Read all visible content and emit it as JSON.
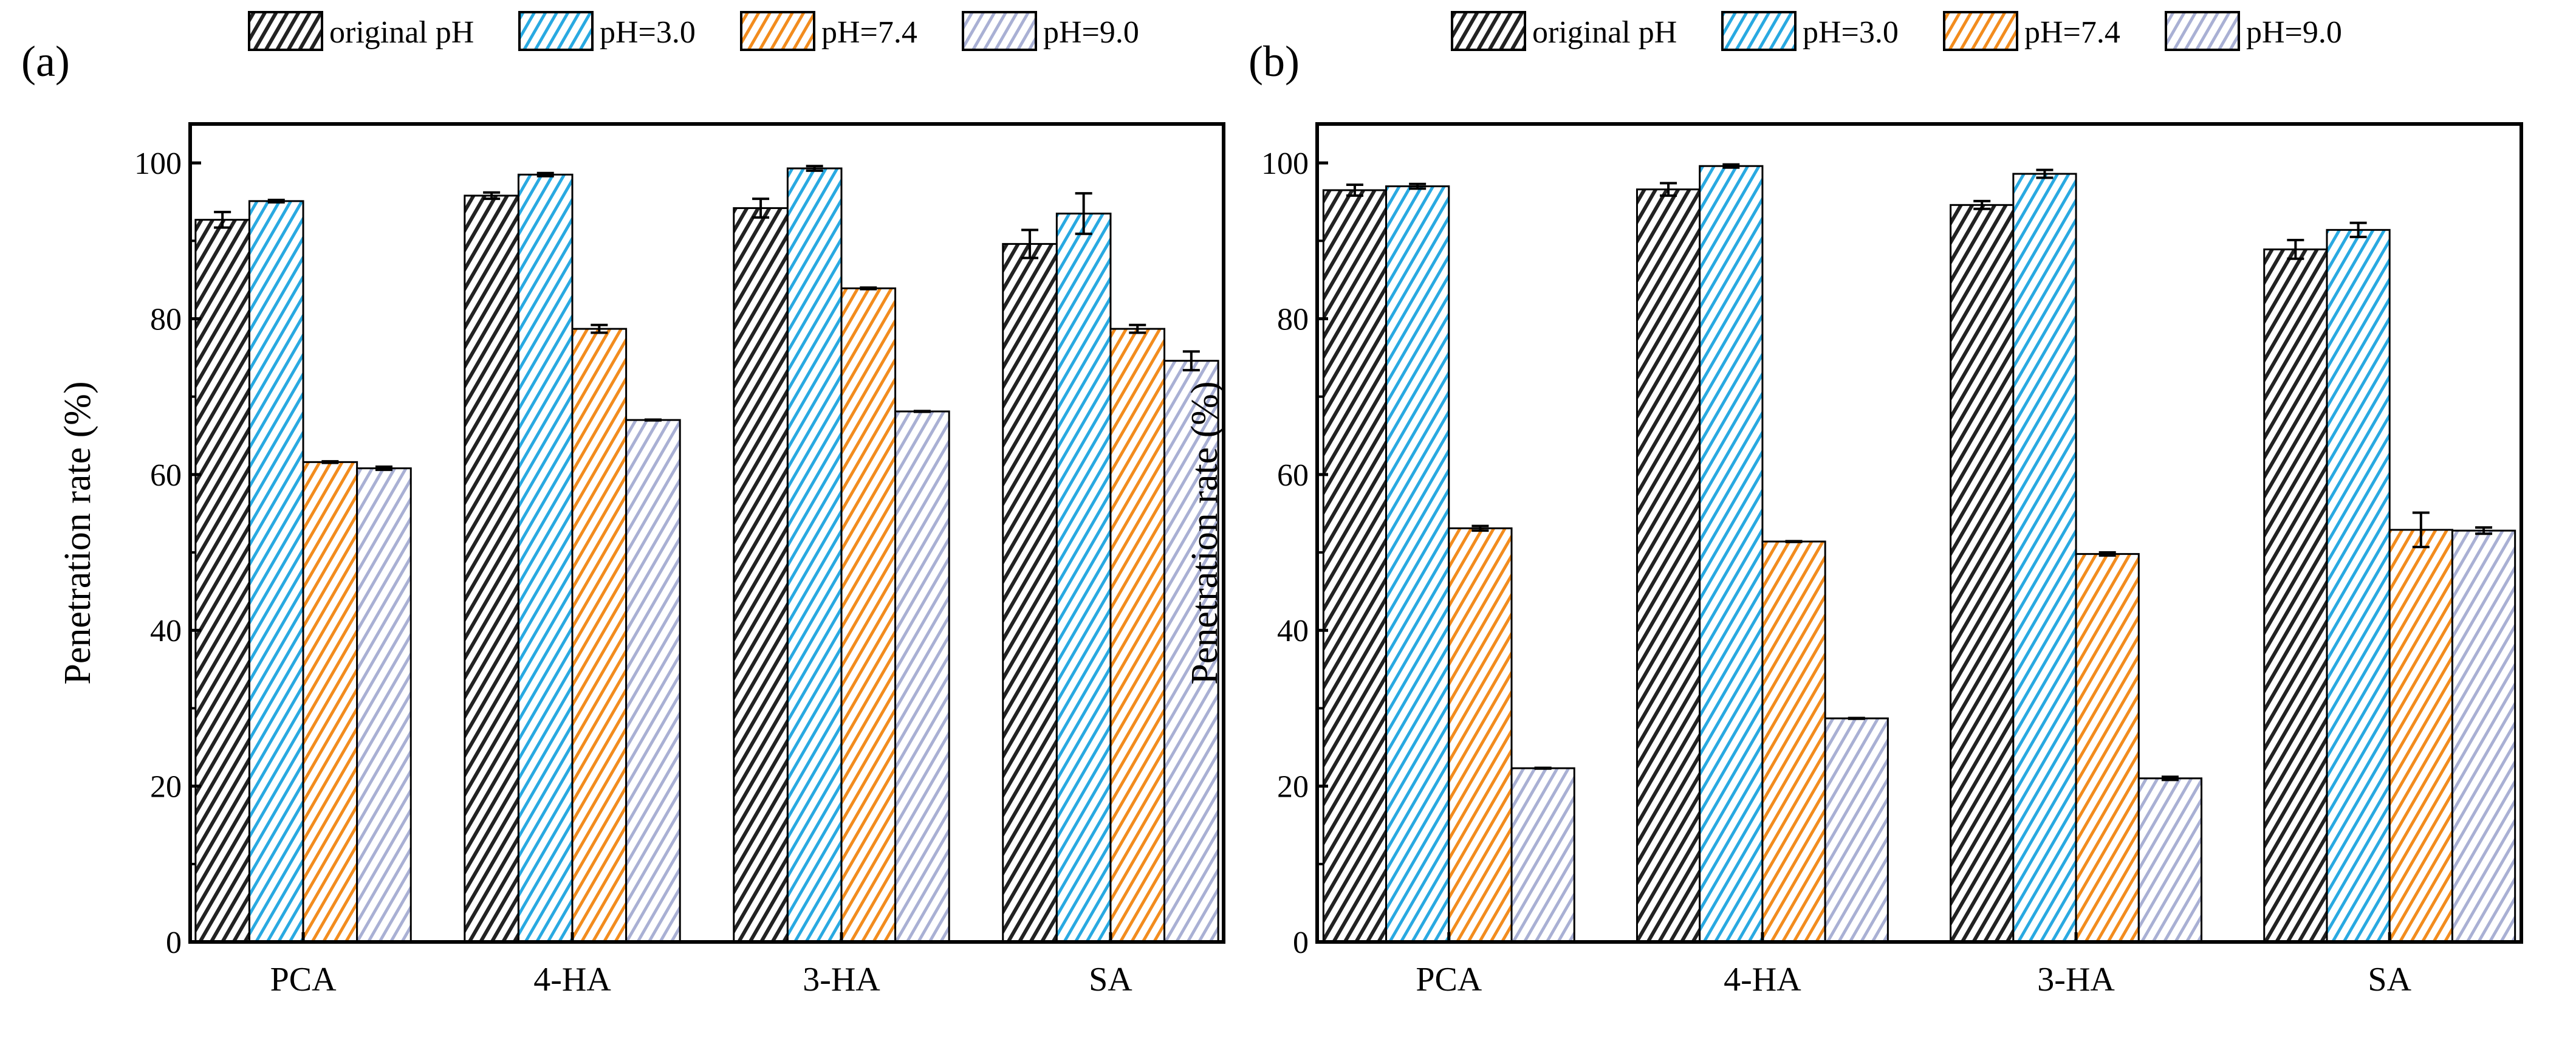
{
  "chart_data": [
    {
      "type": "bar",
      "panel_label": "(a)",
      "ylabel": "Penetration rate (%)",
      "xlabel": "",
      "ylim": [
        0,
        105
      ],
      "yticks": [
        0,
        20,
        40,
        60,
        80,
        100
      ],
      "categories": [
        "PCA",
        "4-HA",
        "3-HA",
        "SA"
      ],
      "legend_position": "top",
      "series": [
        {
          "name": "original pH",
          "color": "#222222",
          "values": [
            92.7,
            95.8,
            94.2,
            89.6
          ],
          "errors": [
            1.0,
            0.4,
            1.2,
            1.8
          ]
        },
        {
          "name": "pH=3.0",
          "color": "#29a9e1",
          "values": [
            95.1,
            98.5,
            99.3,
            93.5
          ],
          "errors": [
            0.15,
            0.2,
            0.3,
            2.6
          ]
        },
        {
          "name": "pH=7.4",
          "color": "#f28c1e",
          "values": [
            61.6,
            78.7,
            83.9,
            78.7
          ],
          "errors": [
            0.1,
            0.5,
            0.1,
            0.5
          ]
        },
        {
          "name": "pH=9.0",
          "color": "#a9b0d4",
          "values": [
            60.8,
            67.0,
            68.1,
            74.6
          ],
          "errors": [
            0.2,
            0.05,
            0.05,
            1.2
          ]
        }
      ]
    },
    {
      "type": "bar",
      "panel_label": "(b)",
      "ylabel": "Penetration rate (%)",
      "xlabel": "",
      "ylim": [
        0,
        105
      ],
      "yticks": [
        0,
        20,
        40,
        60,
        80,
        100
      ],
      "categories": [
        "PCA",
        "4-HA",
        "3-HA",
        "SA"
      ],
      "legend_position": "top",
      "series": [
        {
          "name": "original pH",
          "color": "#222222",
          "values": [
            96.5,
            96.6,
            94.6,
            88.9
          ],
          "errors": [
            0.7,
            0.8,
            0.5,
            1.2
          ]
        },
        {
          "name": "pH=3.0",
          "color": "#29a9e1",
          "values": [
            97.0,
            99.6,
            98.6,
            91.4
          ],
          "errors": [
            0.3,
            0.2,
            0.5,
            0.9
          ]
        },
        {
          "name": "pH=7.4",
          "color": "#f28c1e",
          "values": [
            53.1,
            51.4,
            49.8,
            52.9
          ],
          "errors": [
            0.3,
            0.05,
            0.2,
            2.2
          ]
        },
        {
          "name": "pH=9.0",
          "color": "#a9b0d4",
          "values": [
            22.3,
            28.7,
            21.0,
            52.8
          ],
          "errors": [
            0.05,
            0.05,
            0.2,
            0.4
          ]
        }
      ]
    }
  ]
}
